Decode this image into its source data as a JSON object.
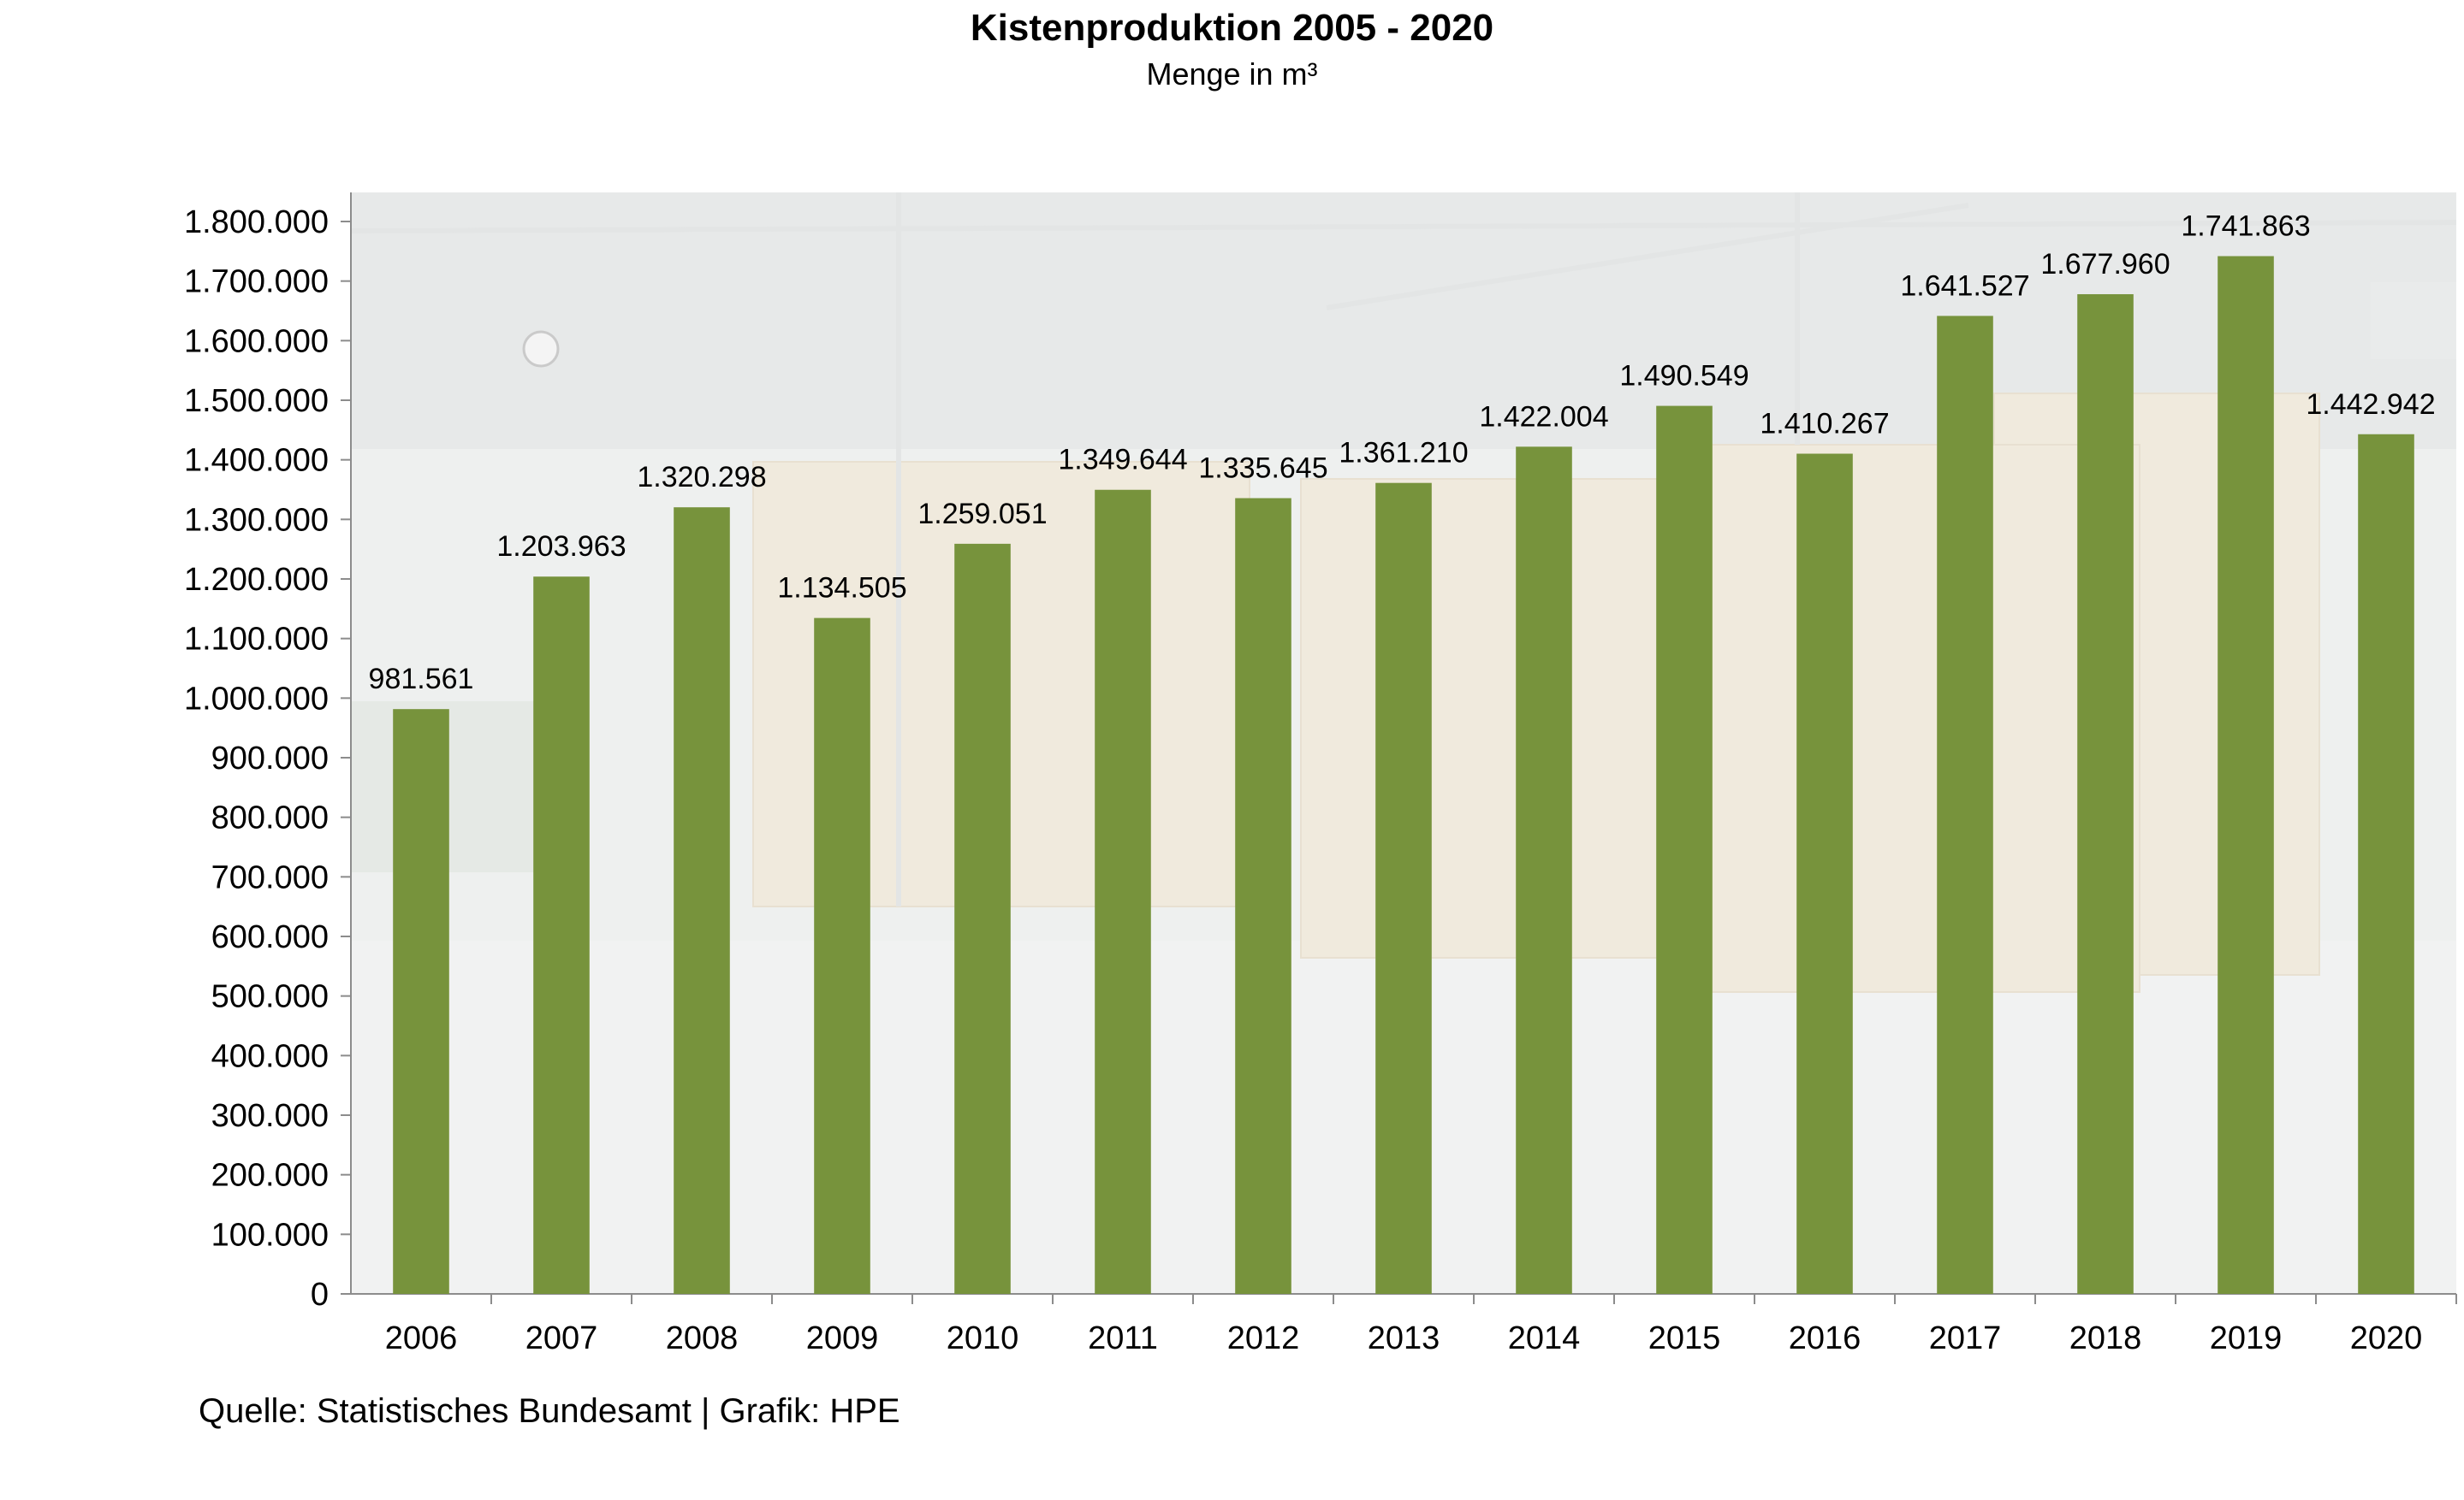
{
  "chart_data": {
    "type": "bar",
    "title": "Kistenproduktion 2005 - 2020",
    "subtitle": "Menge in m³",
    "categories": [
      "2006",
      "2007",
      "2008",
      "2009",
      "2010",
      "2011",
      "2012",
      "2013",
      "2014",
      "2015",
      "2016",
      "2017",
      "2018",
      "2019",
      "2020"
    ],
    "values": [
      981561,
      1203963,
      1320298,
      1134505,
      1259051,
      1349644,
      1335645,
      1361210,
      1422004,
      1490549,
      1410267,
      1641527,
      1677960,
      1741863,
      1442942
    ],
    "value_labels": [
      "981.561",
      "1.203.963",
      "1.320.298",
      "1.134.505",
      "1.259.051",
      "1.349.644",
      "1.335.645",
      "1.361.210",
      "1.422.004",
      "1.490.549",
      "1.410.267",
      "1.641.527",
      "1.677.960",
      "1.741.863",
      "1.442.942"
    ],
    "ylim": [
      0,
      1800000
    ],
    "ytick_step": 100000,
    "ytick_labels": [
      "0",
      "100.000",
      "200.000",
      "300.000",
      "400.000",
      "500.000",
      "600.000",
      "700.000",
      "800.000",
      "900.000",
      "1.000.000",
      "1.100.000",
      "1.200.000",
      "1.300.000",
      "1.400.000",
      "1.500.000",
      "1.600.000",
      "1.700.000",
      "1.800.000"
    ],
    "xlabel": "",
    "ylabel": "",
    "grid": false,
    "bar_color": "#77933c",
    "background": "faded warehouse photo"
  },
  "source": "Quelle: Statistisches Bundesamt | Grafik: HPE"
}
